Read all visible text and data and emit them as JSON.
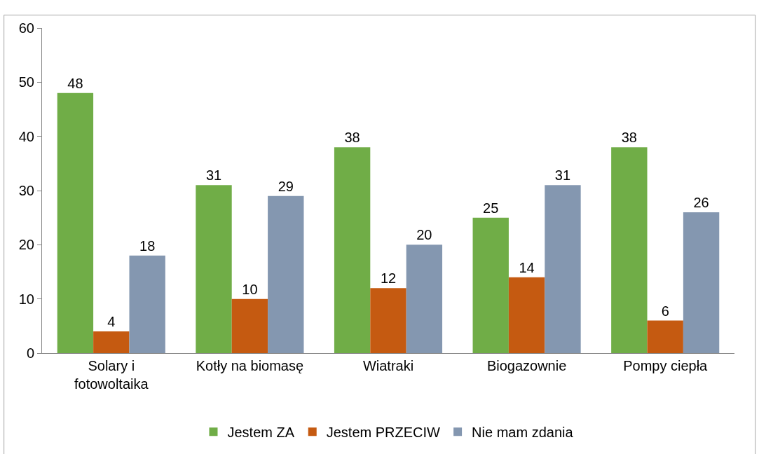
{
  "chart_data": {
    "type": "bar",
    "categories": [
      "Solary i\nfotowoltaika",
      "Kotły na biomasę",
      "Wiatraki",
      "Biogazownie",
      "Pompy ciepła"
    ],
    "series": [
      {
        "name": "Jestem ZA",
        "color": "#70ad47",
        "values": [
          48,
          31,
          38,
          25,
          38
        ]
      },
      {
        "name": "Jestem PRZECIW",
        "color": "#c55a11",
        "values": [
          4,
          10,
          12,
          14,
          6
        ]
      },
      {
        "name": "Nie mam zdania",
        "color": "#8497b0",
        "values": [
          18,
          29,
          20,
          31,
          26
        ]
      }
    ],
    "ylim": [
      0,
      60
    ],
    "yticks": [
      0,
      10,
      20,
      30,
      40,
      50,
      60
    ],
    "legend": "bottom",
    "data_labels": true
  }
}
